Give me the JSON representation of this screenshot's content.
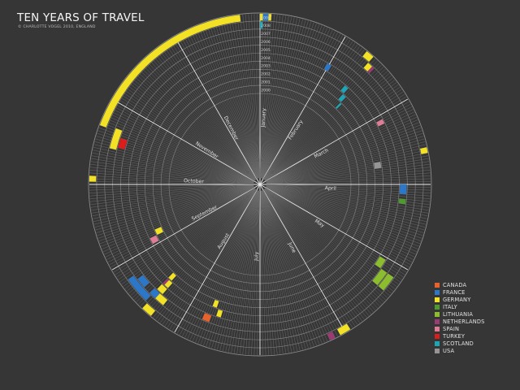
{
  "title": "TEN YEARS OF TRAVEL",
  "credit": "© CHARLOTTE VOGEL 2010, ENGLAND",
  "chart_data": {
    "type": "radial-calendar",
    "years": [
      "2000",
      "2001",
      "2002",
      "2003",
      "2004",
      "2005",
      "2006",
      "2007",
      "2008",
      "2009"
    ],
    "months": [
      "January",
      "February",
      "March",
      "April",
      "May",
      "June",
      "July",
      "August",
      "September",
      "October",
      "November",
      "December"
    ],
    "days_per_month": 31,
    "legend": [
      {
        "name": "CANADA",
        "color": "#e8622c"
      },
      {
        "name": "FRANCE",
        "color": "#2c77c7"
      },
      {
        "name": "GERMANY",
        "color": "#f2e125"
      },
      {
        "name": "ITALY",
        "color": "#4f9a2f"
      },
      {
        "name": "LITHUANIA",
        "color": "#8cbd2e"
      },
      {
        "name": "NETHERLANDS",
        "color": "#9c3b73"
      },
      {
        "name": "SPAIN",
        "color": "#e07c96"
      },
      {
        "name": "TURKEY",
        "color": "#dd1c1c"
      },
      {
        "name": "SCOTLAND",
        "color": "#1ea5b5"
      },
      {
        "name": "USA",
        "color": "#959595"
      }
    ],
    "trips": [
      {
        "country": "GERMANY",
        "year": "2009",
        "start": 0,
        "days": 4
      },
      {
        "country": "FRANCE",
        "year": "2009",
        "start": 1,
        "days": 2
      },
      {
        "country": "SCOTLAND",
        "year": "2008",
        "start": 0,
        "days": 1
      },
      {
        "country": "GERMANY",
        "year": "2009",
        "start": 300,
        "days": 65
      },
      {
        "country": "GERMANY",
        "year": "2009",
        "start": 40,
        "days": 3
      },
      {
        "country": "GERMANY",
        "year": "2008",
        "start": 43,
        "days": 2
      },
      {
        "country": "NETHERLANDS",
        "year": "2008",
        "start": 45,
        "days": 1
      },
      {
        "country": "FRANCE",
        "year": "2005",
        "start": 30,
        "days": 2
      },
      {
        "country": "SCOTLAND",
        "year": "2004",
        "start": 42,
        "days": 2
      },
      {
        "country": "SCOTLAND",
        "year": "2003",
        "start": 44,
        "days": 2
      },
      {
        "country": "SCOTLAND",
        "year": "2002",
        "start": 46,
        "days": 1
      },
      {
        "country": "SPAIN",
        "year": "2005",
        "start": 64,
        "days": 2
      },
      {
        "country": "USA",
        "year": "2003",
        "start": 82,
        "days": 3
      },
      {
        "country": "GERMANY",
        "year": "2009",
        "start": 80,
        "days": 2
      },
      {
        "country": "FRANCE",
        "year": "2006",
        "start": 93,
        "days": 4
      },
      {
        "country": "ITALY",
        "year": "2006",
        "start": 99,
        "days": 2
      },
      {
        "country": "LITHUANIA",
        "year": "2008",
        "start": 129,
        "days": 6
      },
      {
        "country": "LITHUANIA",
        "year": "2007",
        "start": 129,
        "days": 6
      },
      {
        "country": "LITHUANIA",
        "year": "2006",
        "start": 125,
        "days": 4
      },
      {
        "country": "GERMANY",
        "year": "2009",
        "start": 153,
        "days": 4
      },
      {
        "country": "NETHERLANDS",
        "year": "2009",
        "start": 159,
        "days": 2
      },
      {
        "country": "CANADA",
        "year": "2006",
        "start": 207,
        "days": 3
      },
      {
        "country": "GERMANY",
        "year": "2005",
        "start": 203,
        "days": 2
      },
      {
        "country": "GERMANY",
        "year": "2004",
        "start": 206,
        "days": 2
      },
      {
        "country": "FRANCE",
        "year": "2007",
        "start": 230,
        "days": 3
      },
      {
        "country": "GERMANY",
        "year": "2007",
        "start": 226,
        "days": 4
      },
      {
        "country": "GERMANY",
        "year": "2006",
        "start": 229,
        "days": 3
      },
      {
        "country": "NETHERLANDS",
        "year": "2005",
        "start": 231,
        "days": 1
      },
      {
        "country": "GERMANY",
        "year": "2005",
        "start": 229,
        "days": 2
      },
      {
        "country": "GERMANY",
        "year": "2004",
        "start": 230,
        "days": 2
      },
      {
        "country": "GERMANY",
        "year": "2009",
        "start": 227,
        "days": 4
      },
      {
        "country": "FRANCE",
        "year": "2008",
        "start": 232,
        "days": 10
      },
      {
        "country": "FRANCE",
        "year": "2007",
        "start": 236,
        "days": 4
      },
      {
        "country": "SPAIN",
        "year": "2003",
        "start": 249,
        "days": 3
      },
      {
        "country": "GERMANY",
        "year": "2002",
        "start": 252,
        "days": 3
      },
      {
        "country": "GERMANY",
        "year": "2009",
        "start": 280,
        "days": 2
      },
      {
        "country": "GERMANY",
        "year": "2007",
        "start": 293,
        "days": 8
      },
      {
        "country": "TURKEY",
        "year": "2006",
        "start": 294,
        "days": 4
      }
    ]
  }
}
